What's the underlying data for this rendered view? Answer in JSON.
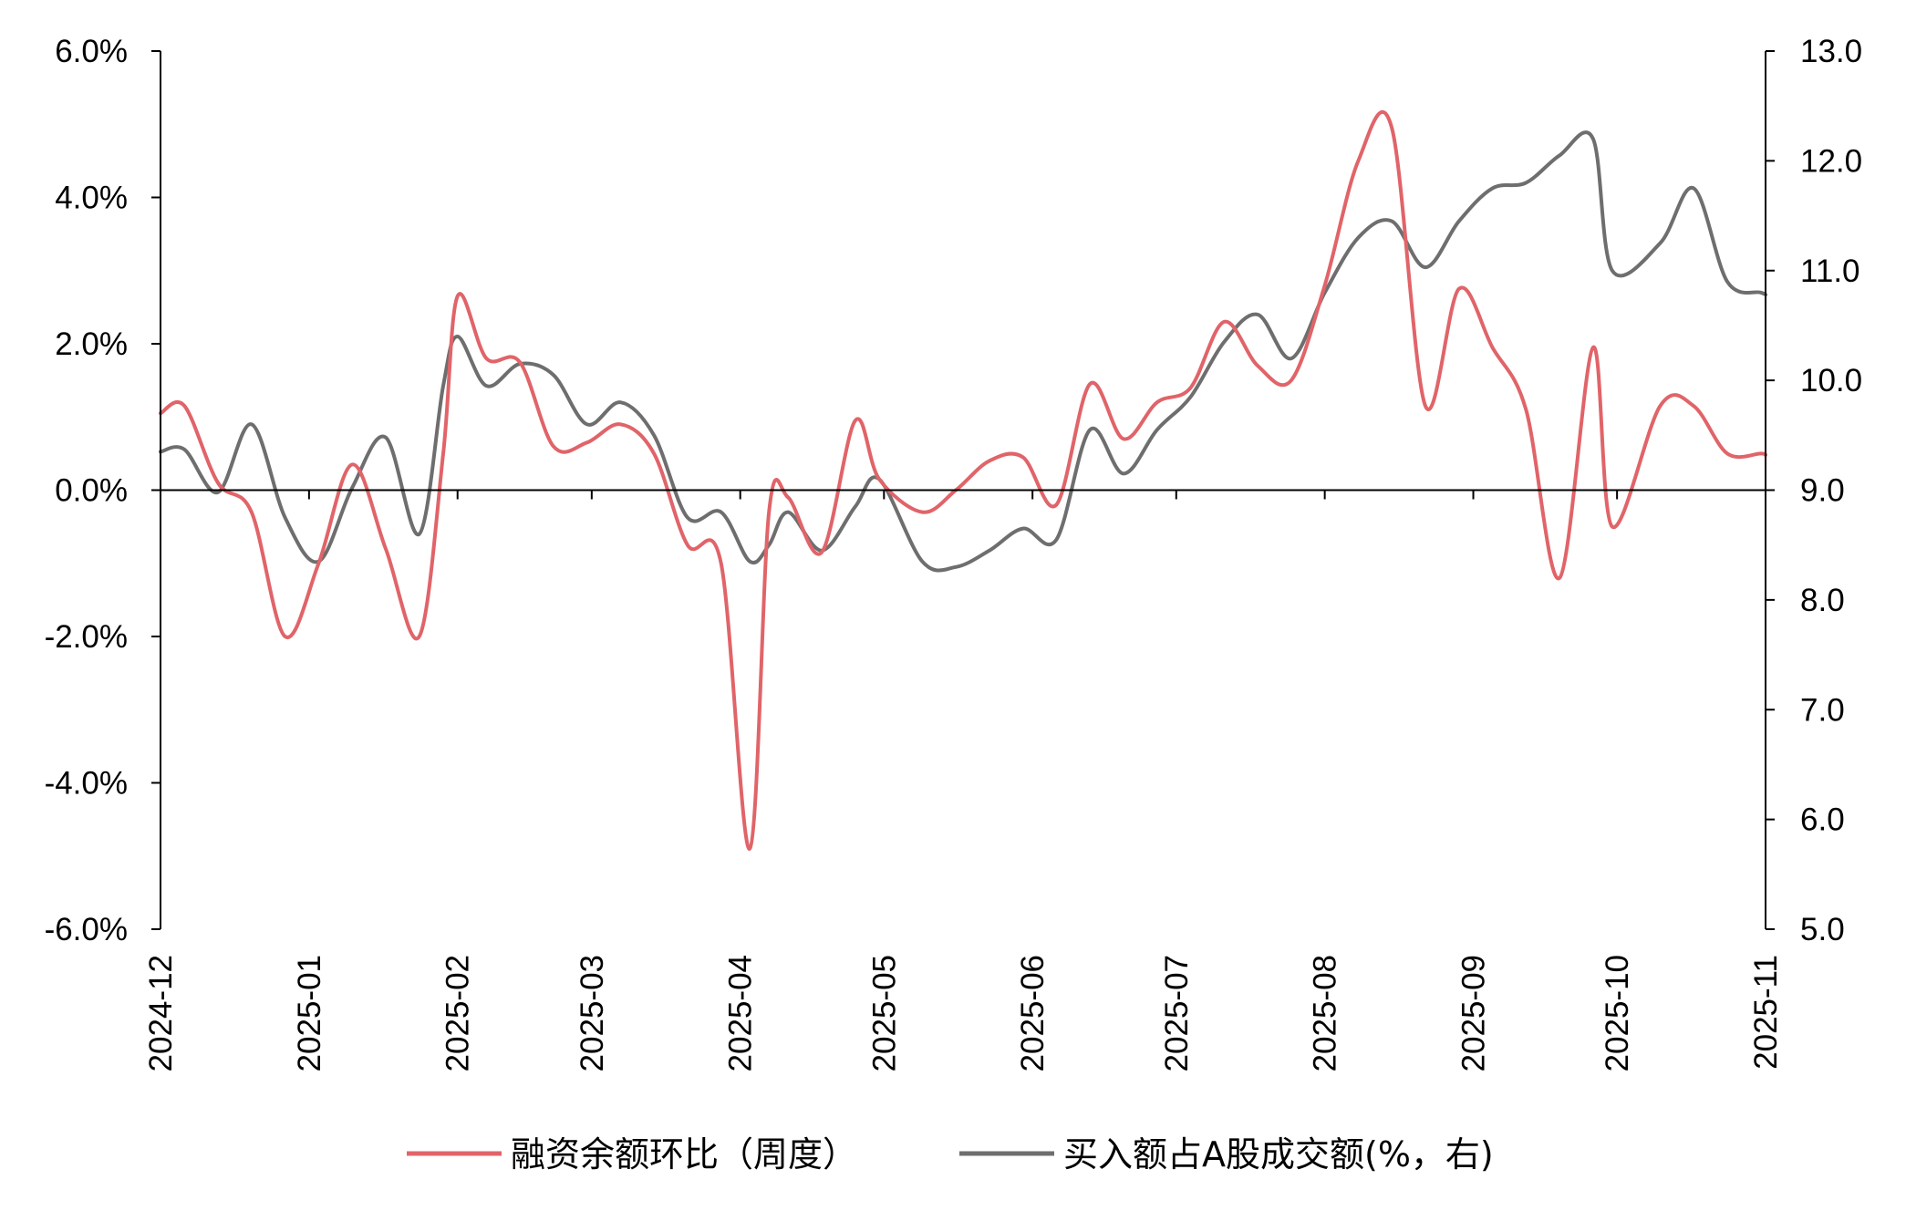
{
  "chart_data": {
    "type": "line",
    "title": "",
    "x_axis": {
      "tick_labels": [
        "2024-12",
        "2025-01",
        "2025-02",
        "2025-03",
        "2025-04",
        "2025-05",
        "2025-06",
        "2025-07",
        "2025-08",
        "2025-09",
        "2025-10",
        "2025-11"
      ],
      "range": [
        "2024-12-01",
        "2025-11-01"
      ]
    },
    "left_axis": {
      "range": [
        -6.0,
        6.0
      ],
      "tick_labels": [
        "6.0%",
        "4.0%",
        "2.0%",
        "0.0%",
        "-2.0%",
        "-4.0%",
        "-6.0%"
      ]
    },
    "right_axis": {
      "range": [
        5.0,
        13.0
      ],
      "tick_labels": [
        "13.0",
        "12.0",
        "11.0",
        "10.0",
        "9.0",
        "8.0",
        "7.0",
        "6.0",
        "5.0"
      ]
    },
    "grid": false,
    "legend_position": "bottom",
    "series": [
      {
        "name": "融资余额环比（周度）",
        "axis": "left",
        "color": "#E06469",
        "x": [
          "2024-12-01",
          "2024-12-06",
          "2024-12-13",
          "2024-12-20",
          "2024-12-27",
          "2025-01-03",
          "2025-01-10",
          "2025-01-17",
          "2025-01-24",
          "2025-01-29",
          "2025-02-01",
          "2025-02-07",
          "2025-02-14",
          "2025-02-21",
          "2025-02-28",
          "2025-03-07",
          "2025-03-14",
          "2025-03-21",
          "2025-03-28",
          "2025-04-03",
          "2025-04-07",
          "2025-04-11",
          "2025-04-18",
          "2025-04-25",
          "2025-04-30",
          "2025-05-09",
          "2025-05-16",
          "2025-05-23",
          "2025-05-30",
          "2025-06-06",
          "2025-06-13",
          "2025-06-20",
          "2025-06-27",
          "2025-07-04",
          "2025-07-11",
          "2025-07-18",
          "2025-07-25",
          "2025-08-01",
          "2025-08-08",
          "2025-08-15",
          "2025-08-22",
          "2025-08-29",
          "2025-09-05",
          "2025-09-12",
          "2025-09-19",
          "2025-09-26",
          "2025-09-30",
          "2025-10-10",
          "2025-10-17",
          "2025-10-24",
          "2025-10-31",
          "2025-11-01"
        ],
        "values": [
          1.05,
          1.15,
          0.1,
          -0.3,
          -2.0,
          -1.0,
          0.35,
          -0.8,
          -2.0,
          0.5,
          2.65,
          1.8,
          1.75,
          0.6,
          0.65,
          0.9,
          0.5,
          -0.75,
          -1.0,
          -4.9,
          -0.3,
          -0.1,
          -0.85,
          0.95,
          0.15,
          -0.3,
          0.0,
          0.4,
          0.45,
          -0.2,
          1.45,
          0.7,
          1.2,
          1.4,
          2.3,
          1.7,
          1.5,
          2.8,
          4.5,
          4.95,
          1.15,
          2.75,
          1.95,
          1.1,
          -1.2,
          1.95,
          -0.5,
          1.15,
          1.15,
          0.5,
          0.5,
          0.48
        ]
      },
      {
        "name": "买入额占A股成交额(%，右)",
        "axis": "right",
        "color": "#6E6E6E",
        "x": [
          "2024-12-01",
          "2024-12-06",
          "2024-12-13",
          "2024-12-20",
          "2024-12-27",
          "2025-01-03",
          "2025-01-10",
          "2025-01-17",
          "2025-01-24",
          "2025-01-29",
          "2025-02-01",
          "2025-02-07",
          "2025-02-14",
          "2025-02-21",
          "2025-02-28",
          "2025-03-07",
          "2025-03-14",
          "2025-03-21",
          "2025-03-28",
          "2025-04-03",
          "2025-04-07",
          "2025-04-11",
          "2025-04-18",
          "2025-04-25",
          "2025-04-30",
          "2025-05-09",
          "2025-05-16",
          "2025-05-23",
          "2025-05-30",
          "2025-06-06",
          "2025-06-13",
          "2025-06-20",
          "2025-06-27",
          "2025-07-04",
          "2025-07-11",
          "2025-07-18",
          "2025-07-25",
          "2025-08-01",
          "2025-08-08",
          "2025-08-15",
          "2025-08-22",
          "2025-08-29",
          "2025-09-05",
          "2025-09-12",
          "2025-09-19",
          "2025-09-26",
          "2025-09-30",
          "2025-10-10",
          "2025-10-17",
          "2025-10-24",
          "2025-10-31",
          "2025-11-01"
        ],
        "values": [
          9.35,
          9.37,
          8.98,
          9.6,
          8.75,
          8.35,
          9.02,
          9.48,
          8.6,
          9.95,
          10.4,
          9.95,
          10.15,
          10.05,
          9.6,
          9.8,
          9.5,
          8.75,
          8.8,
          8.35,
          8.5,
          8.8,
          8.45,
          8.85,
          9.1,
          8.35,
          8.3,
          8.45,
          8.65,
          8.55,
          9.55,
          9.15,
          9.55,
          9.85,
          10.35,
          10.6,
          10.2,
          10.8,
          11.3,
          11.45,
          11.03,
          11.45,
          11.75,
          11.8,
          12.05,
          12.2,
          11.0,
          11.25,
          11.75,
          10.9,
          10.8,
          10.78
        ]
      }
    ]
  }
}
